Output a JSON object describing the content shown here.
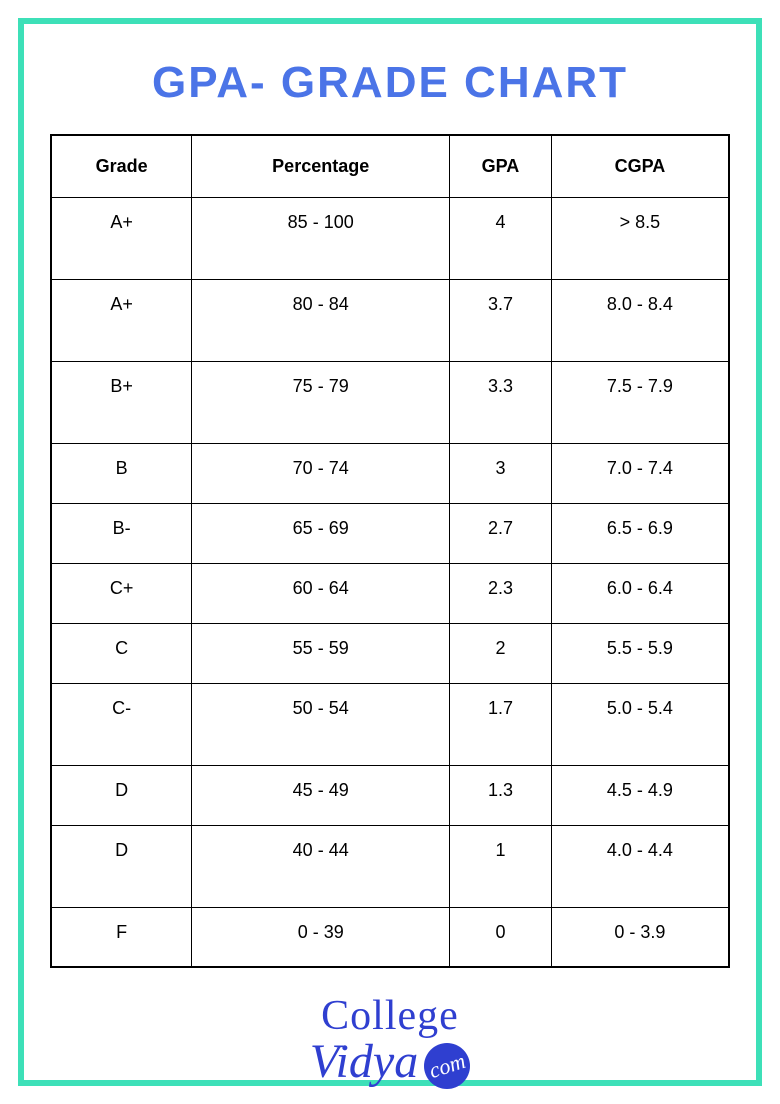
{
  "title": "GPA- GRADE CHART",
  "border_color": "#3de0b8",
  "title_color": "#4b74e7",
  "table": {
    "columns": [
      "Grade",
      "Percentage",
      "GPA",
      "CGPA"
    ],
    "rows": [
      {
        "grade": "A+",
        "percentage": "85 - 100",
        "gpa": "4",
        "cgpa": "> 8.5",
        "height": "tall"
      },
      {
        "grade": "A+",
        "percentage": "80 - 84",
        "gpa": "3.7",
        "cgpa": "8.0 - 8.4",
        "height": "tall"
      },
      {
        "grade": "B+",
        "percentage": "75 - 79",
        "gpa": "3.3",
        "cgpa": "7.5 - 7.9",
        "height": "tall"
      },
      {
        "grade": "B",
        "percentage": "70 - 74",
        "gpa": "3",
        "cgpa": "7.0 - 7.4",
        "height": "short"
      },
      {
        "grade": "B-",
        "percentage": "65 - 69",
        "gpa": "2.7",
        "cgpa": "6.5 - 6.9",
        "height": "short"
      },
      {
        "grade": "C+",
        "percentage": "60 - 64",
        "gpa": "2.3",
        "cgpa": "6.0 - 6.4",
        "height": "short"
      },
      {
        "grade": "C",
        "percentage": "55 - 59",
        "gpa": "2",
        "cgpa": "5.5 - 5.9",
        "height": "short"
      },
      {
        "grade": "C-",
        "percentage": "50 - 54",
        "gpa": "1.7",
        "cgpa": "5.0 - 5.4",
        "height": "tall"
      },
      {
        "grade": "D",
        "percentage": "45 - 49",
        "gpa": "1.3",
        "cgpa": "4.5 - 4.9",
        "height": "short"
      },
      {
        "grade": "D",
        "percentage": "40 - 44",
        "gpa": "1",
        "cgpa": "4.0 - 4.4",
        "height": "tall"
      },
      {
        "grade": "F",
        "percentage": "0 - 39",
        "gpa": "0",
        "cgpa": "0 - 3.9",
        "height": "short"
      }
    ],
    "border_color": "#000000",
    "text_color": "#000000",
    "header_fontsize": 18,
    "cell_fontsize": 18
  },
  "logo": {
    "line1": "College",
    "line2": "Vidya",
    "badge_text": "com",
    "text_color": "#2f3fd0",
    "badge_bg": "#2f3fd0",
    "badge_text_color": "#ffffff"
  }
}
